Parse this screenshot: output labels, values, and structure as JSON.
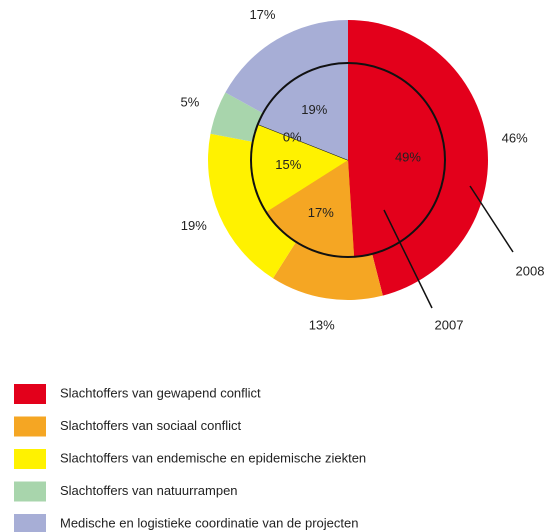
{
  "chart_data": {
    "type": "pie",
    "categories": [
      "Slachtoffers van gewapend conflict",
      "Slachtoffers van sociaal conflict",
      "Slachtoffers van endemische en epidemische ziekten",
      "Slachtoffers van natuurrampen",
      "Medische en logistieke coordinatie van de projecten"
    ],
    "colors": [
      "#e3001b",
      "#f5a623",
      "#fff200",
      "#a8d5ac",
      "#a7aed6"
    ],
    "series": [
      {
        "name": "2008",
        "values": [
          46,
          13,
          19,
          5,
          17
        ],
        "value_labels": [
          "46%",
          "13%",
          "19%",
          "5%",
          "17%"
        ]
      },
      {
        "name": "2007",
        "values": [
          49,
          17,
          15,
          0,
          19
        ],
        "value_labels": [
          "49%",
          "17%",
          "15%",
          "0%",
          "19%"
        ]
      }
    ]
  }
}
